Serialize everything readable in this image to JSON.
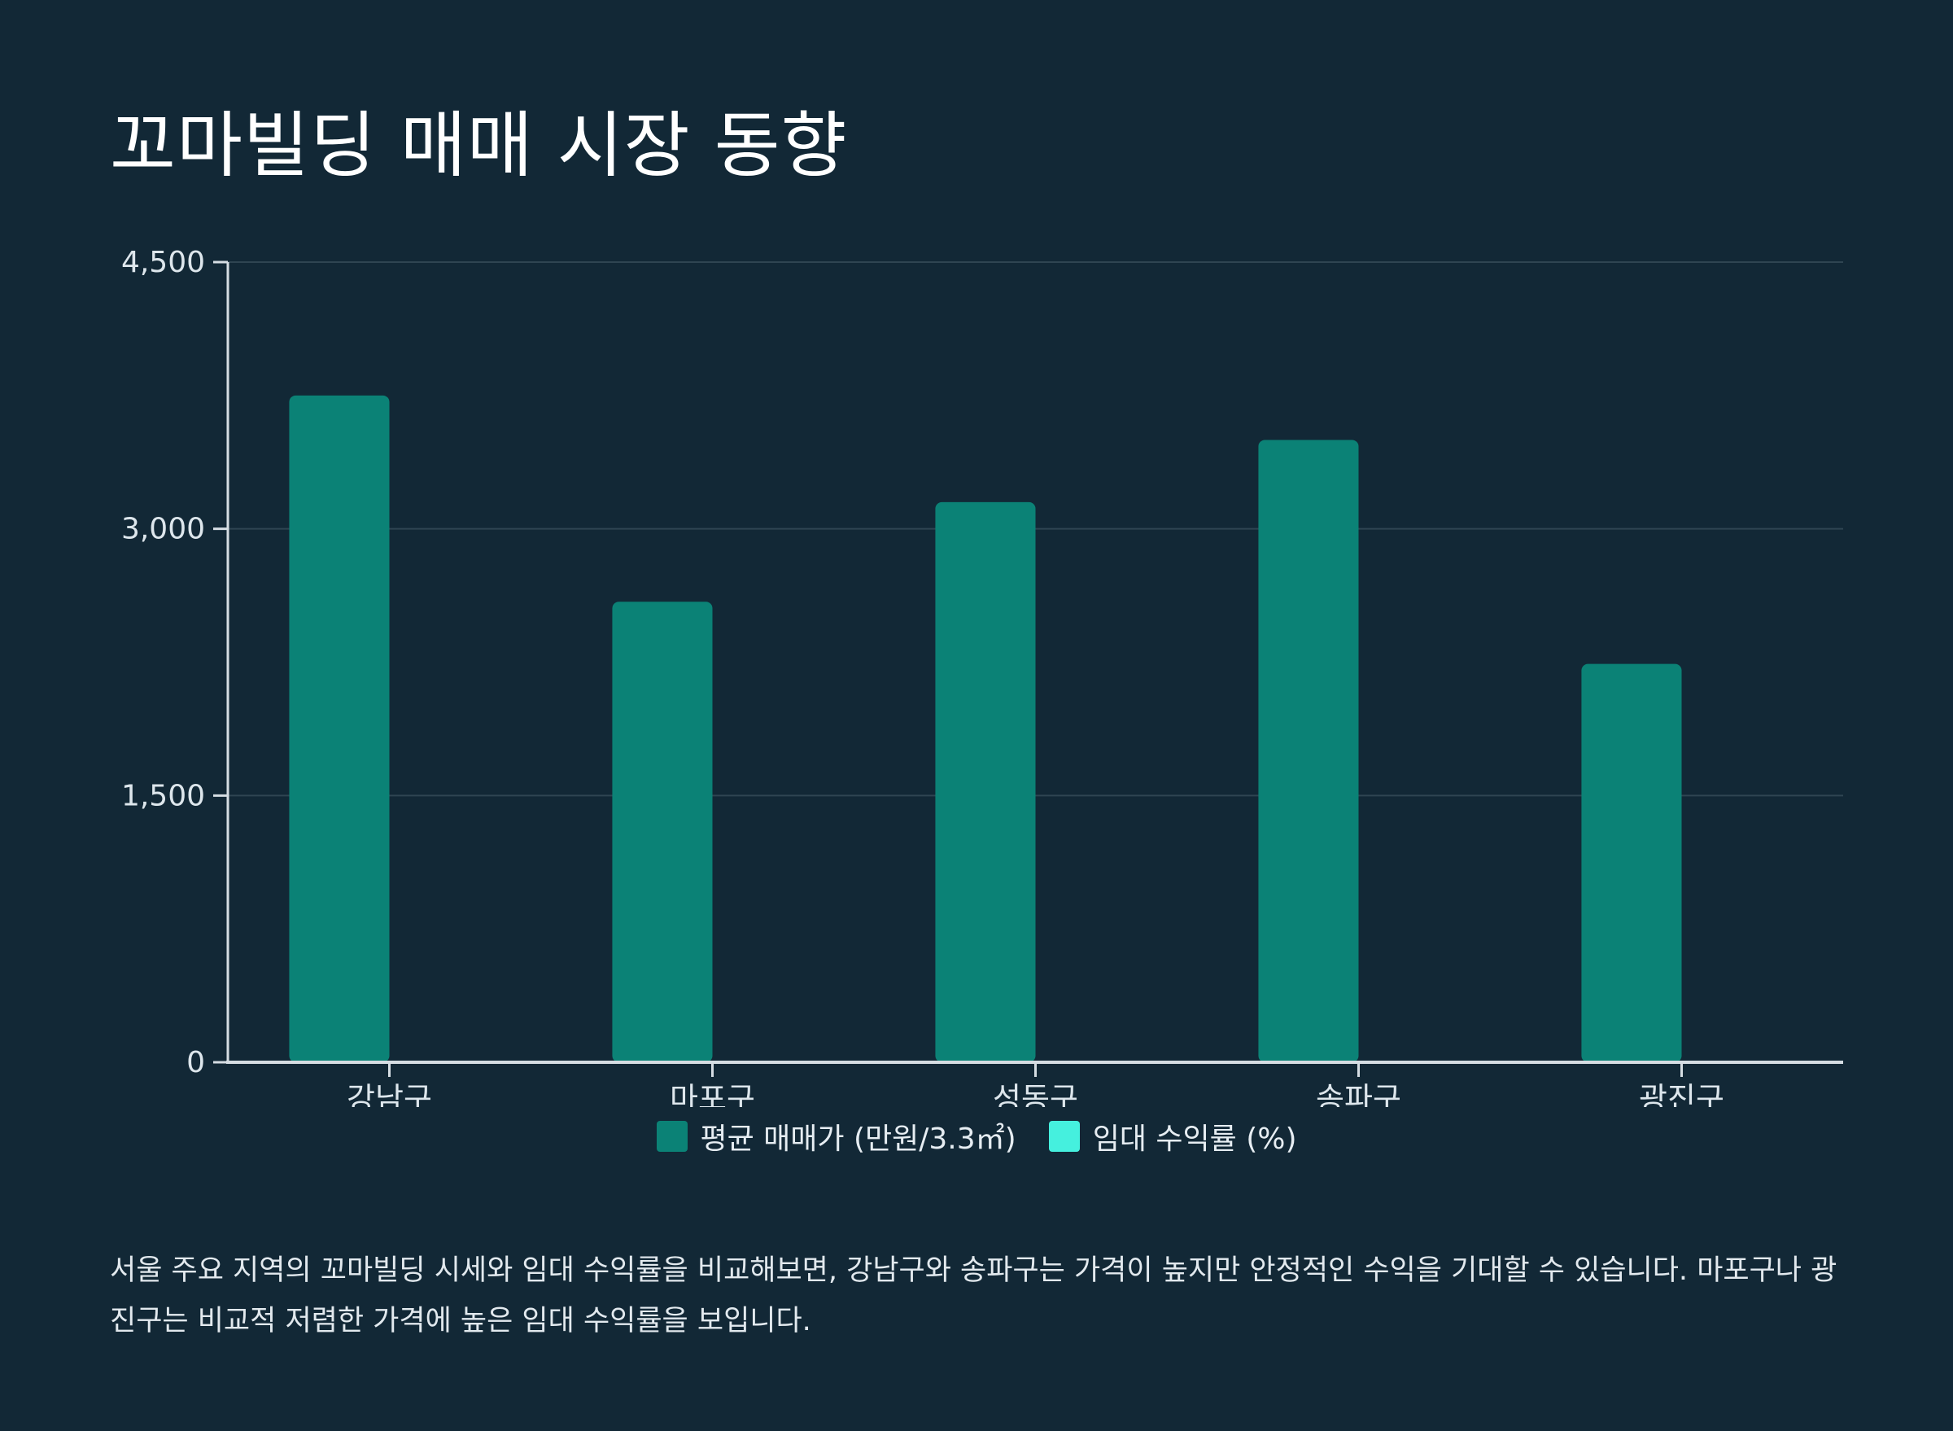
{
  "title": "꼬마빌딩 매매 시장 동향",
  "colors": {
    "background": "#122836",
    "bar": "#0b8276",
    "yield": "#45f0de",
    "grid": "#2f4552",
    "axis": "#d5dde3"
  },
  "chart_data": {
    "type": "bar",
    "categories": [
      "강남구",
      "마포구",
      "성동구",
      "송파구",
      "광진구"
    ],
    "series": [
      {
        "name": "평균 매매가 (만원/3.3㎡)",
        "values": [
          3750,
          2590,
          3150,
          3500,
          2240
        ]
      },
      {
        "name": "임대 수익률 (%)",
        "values": [
          null,
          null,
          null,
          null,
          null
        ]
      }
    ],
    "yticks": [
      0,
      1500,
      3000,
      4500
    ],
    "ytick_labels": [
      "0",
      "1,500",
      "3,000",
      "4,500"
    ],
    "ylim": [
      0,
      4500
    ],
    "grid": true,
    "legend_position": "bottom-center"
  },
  "caption": "서울 주요 지역의 꼬마빌딩 시세와 임대 수익률을 비교해보면, 강남구와 송파구는 가격이 높지만 안정적인 수익을 기대할 수 있습니다. 마포구나 광진구는 비교적 저렴한 가격에 높은 임대 수익률을 보입니다."
}
